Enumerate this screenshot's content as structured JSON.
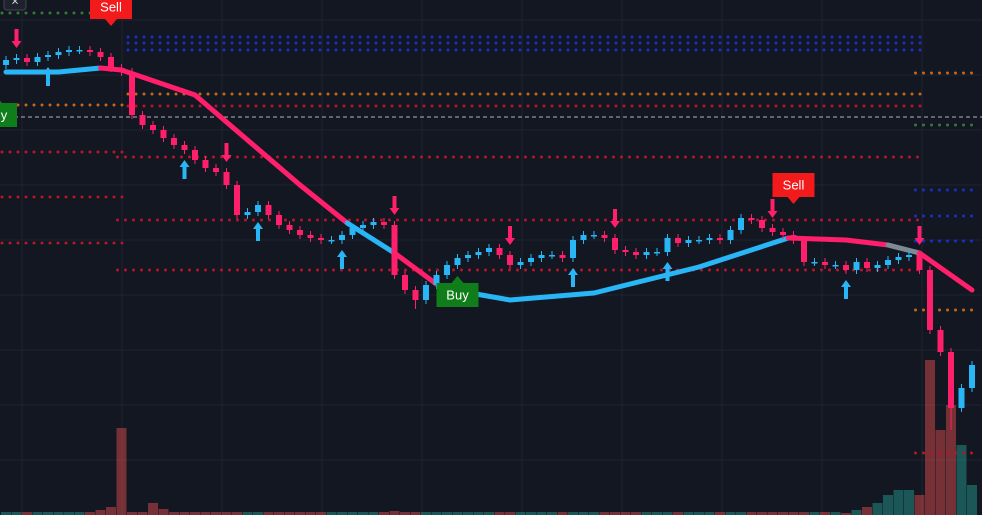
{
  "close_button": "×",
  "chart_data": {
    "type": "candlestick",
    "ylim": [
      0,
      515
    ],
    "up_color": "#29b6f6",
    "down_color": "#ff1f6b",
    "candles": [
      [
        450,
        459,
        446,
        455
      ],
      [
        455,
        461,
        451,
        457
      ],
      [
        457,
        461,
        449,
        453
      ],
      [
        453,
        462,
        449,
        458
      ],
      [
        458,
        464,
        454,
        460
      ],
      [
        460,
        467,
        456,
        463
      ],
      [
        463,
        469,
        459,
        465
      ],
      [
        465,
        469,
        461,
        465
      ],
      [
        465,
        469,
        459,
        463
      ],
      [
        463,
        467,
        454,
        458
      ],
      [
        458,
        462,
        443,
        447
      ],
      [
        447,
        451,
        439,
        443
      ],
      [
        443,
        447,
        396,
        400
      ],
      [
        400,
        404,
        386,
        390
      ],
      [
        390,
        394,
        381,
        385
      ],
      [
        385,
        389,
        373,
        377
      ],
      [
        377,
        381,
        366,
        370
      ],
      [
        370,
        374,
        361,
        365
      ],
      [
        365,
        369,
        351,
        355
      ],
      [
        355,
        359,
        343,
        347
      ],
      [
        347,
        351,
        339,
        343
      ],
      [
        343,
        347,
        326,
        330
      ],
      [
        330,
        334,
        296,
        300
      ],
      [
        300,
        307,
        296,
        303
      ],
      [
        303,
        314,
        299,
        310
      ],
      [
        310,
        314,
        296,
        300
      ],
      [
        300,
        304,
        286,
        290
      ],
      [
        290,
        294,
        281,
        285
      ],
      [
        285,
        289,
        276,
        280
      ],
      [
        280,
        284,
        273,
        277
      ],
      [
        277,
        281,
        271,
        275
      ],
      [
        275,
        279,
        271,
        275
      ],
      [
        275,
        284,
        271,
        280
      ],
      [
        280,
        291,
        276,
        287
      ],
      [
        287,
        294,
        283,
        290
      ],
      [
        290,
        297,
        286,
        293
      ],
      [
        293,
        297,
        286,
        290
      ],
      [
        290,
        294,
        236,
        240
      ],
      [
        240,
        244,
        221,
        225
      ],
      [
        225,
        229,
        206,
        215
      ],
      [
        215,
        234,
        211,
        230
      ],
      [
        230,
        244,
        226,
        240
      ],
      [
        240,
        254,
        236,
        250
      ],
      [
        250,
        261,
        246,
        257
      ],
      [
        257,
        264,
        253,
        260
      ],
      [
        260,
        267,
        256,
        263
      ],
      [
        263,
        271,
        259,
        267
      ],
      [
        267,
        271,
        256,
        260
      ],
      [
        260,
        264,
        246,
        250
      ],
      [
        250,
        257,
        246,
        253
      ],
      [
        253,
        261,
        249,
        257
      ],
      [
        257,
        264,
        253,
        260
      ],
      [
        260,
        264,
        256,
        260
      ],
      [
        260,
        264,
        253,
        257
      ],
      [
        257,
        279,
        253,
        275
      ],
      [
        275,
        284,
        271,
        280
      ],
      [
        280,
        284,
        276,
        280
      ],
      [
        280,
        284,
        273,
        277
      ],
      [
        277,
        281,
        261,
        265
      ],
      [
        265,
        269,
        259,
        263
      ],
      [
        263,
        267,
        256,
        260
      ],
      [
        260,
        267,
        256,
        263
      ],
      [
        263,
        267,
        259,
        263
      ],
      [
        263,
        281,
        259,
        277
      ],
      [
        277,
        281,
        268,
        272
      ],
      [
        272,
        279,
        268,
        275
      ],
      [
        275,
        279,
        271,
        275
      ],
      [
        275,
        281,
        271,
        277
      ],
      [
        277,
        281,
        271,
        275
      ],
      [
        275,
        289,
        271,
        285
      ],
      [
        285,
        301,
        281,
        297
      ],
      [
        297,
        301,
        291,
        295
      ],
      [
        295,
        299,
        283,
        287
      ],
      [
        287,
        291,
        279,
        283
      ],
      [
        283,
        287,
        276,
        280
      ],
      [
        280,
        284,
        271,
        275
      ],
      [
        275,
        279,
        249,
        253
      ],
      [
        253,
        257,
        249,
        253
      ],
      [
        253,
        257,
        246,
        250
      ],
      [
        250,
        254,
        246,
        250
      ],
      [
        250,
        254,
        241,
        245
      ],
      [
        245,
        257,
        241,
        253
      ],
      [
        253,
        257,
        243,
        247
      ],
      [
        247,
        254,
        243,
        250
      ],
      [
        250,
        259,
        246,
        255
      ],
      [
        255,
        262,
        251,
        258
      ],
      [
        258,
        264,
        254,
        260
      ],
      [
        260,
        264,
        241,
        245
      ],
      [
        245,
        249,
        181,
        185
      ],
      [
        185,
        189,
        159,
        163
      ],
      [
        163,
        167,
        85,
        107
      ],
      [
        107,
        131,
        103,
        127
      ],
      [
        127,
        154,
        123,
        150
      ]
    ],
    "volume": [
      3,
      3,
      3,
      3,
      3,
      3,
      3,
      3,
      3,
      5,
      8,
      87,
      3,
      3,
      12,
      6,
      3,
      3,
      3,
      3,
      3,
      3,
      3,
      3,
      3,
      3,
      3,
      3,
      3,
      3,
      3,
      3,
      3,
      3,
      3,
      3,
      3,
      4,
      3,
      3,
      3,
      3,
      3,
      3,
      3,
      3,
      3,
      3,
      3,
      3,
      3,
      3,
      3,
      3,
      3,
      3,
      3,
      3,
      3,
      3,
      3,
      3,
      3,
      3,
      3,
      3,
      3,
      3,
      3,
      3,
      3,
      3,
      3,
      3,
      3,
      3,
      3,
      3,
      3,
      3,
      2,
      5,
      8,
      12,
      20,
      25,
      25,
      20,
      155,
      85,
      110,
      70,
      30
    ],
    "trend": {
      "x": [
        0,
        5,
        9,
        11,
        18,
        28,
        32.5,
        37,
        41.5,
        48,
        56,
        66,
        74.5,
        80,
        84,
        87,
        92
      ],
      "values": [
        443,
        443,
        447,
        445,
        420,
        330,
        292,
        262,
        227,
        215,
        222,
        248,
        277,
        275,
        270,
        262,
        225
      ],
      "segment_colors": [
        "#29b6f6",
        "#29b6f6",
        "#ff1f6b",
        "#ff1f6b",
        "#ff1f6b",
        "#ff1f6b",
        "#29b6f6",
        "#ff1f6b",
        "#29b6f6",
        "#29b6f6",
        "#29b6f6",
        "#29b6f6",
        "#ff1f6b",
        "#ff1f6b",
        "#7d8a96",
        "#ff1f6b"
      ]
    },
    "levels": [
      {
        "value": 502,
        "from": 0,
        "to": 11,
        "color": "#2e7d32"
      },
      {
        "value": 478,
        "from": 12,
        "to": 87,
        "color": "#1a2fc9"
      },
      {
        "value": 472,
        "from": 12,
        "to": 87,
        "color": "#1a2fc9"
      },
      {
        "value": 465,
        "from": 12,
        "to": 87,
        "color": "#1a2fc9"
      },
      {
        "value": 421,
        "from": 12,
        "to": 87,
        "color": "#c7661a"
      },
      {
        "value": 409,
        "from": 12,
        "to": 87,
        "color": "#b8142a"
      },
      {
        "value": 410,
        "from": 0,
        "to": 11,
        "color": "#c7661a"
      },
      {
        "value": 442,
        "from": 87,
        "to": 92,
        "color": "#c7661a"
      },
      {
        "value": 390,
        "from": 87,
        "to": 92,
        "color": "#2e7d32"
      },
      {
        "value": 363,
        "from": 0,
        "to": 11,
        "color": "#b8142a"
      },
      {
        "value": 358,
        "from": 11,
        "to": 87,
        "color": "#b8142a"
      },
      {
        "value": 325,
        "from": 87,
        "to": 92,
        "color": "#1a2fc9"
      },
      {
        "value": 299,
        "from": 87,
        "to": 92,
        "color": "#1a2fc9"
      },
      {
        "value": 274,
        "from": 87,
        "to": 92,
        "color": "#1a2fc9"
      },
      {
        "value": 318,
        "from": 0,
        "to": 11,
        "color": "#b8142a"
      },
      {
        "value": 295,
        "from": 11,
        "to": 87,
        "color": "#b8142a"
      },
      {
        "value": 272,
        "from": 0,
        "to": 11,
        "color": "#b8142a"
      },
      {
        "value": 245,
        "from": 11,
        "to": 87,
        "color": "#b8142a"
      },
      {
        "value": 205,
        "from": 87,
        "to": 92,
        "color": "#c7661a"
      },
      {
        "value": 62,
        "from": 87,
        "to": 92,
        "color": "#b8142a"
      }
    ],
    "price_line": 398,
    "up_arrows": [
      4,
      17,
      24,
      32,
      42,
      54,
      63,
      80
    ],
    "down_arrows": [
      1,
      21,
      37,
      48,
      58,
      73,
      87
    ],
    "signals": [
      {
        "text": "Sell",
        "index": 10,
        "side": "sell",
        "color": "#f21a1a"
      },
      {
        "text": "Sell",
        "index": 75,
        "side": "sell",
        "color": "#f21a1a"
      },
      {
        "text": "Buy",
        "index": 43,
        "side": "buy",
        "color": "#0f7d1a"
      },
      {
        "text": "Buy",
        "index": 0,
        "side": "buy",
        "color": "#0f7d1a"
      }
    ]
  }
}
